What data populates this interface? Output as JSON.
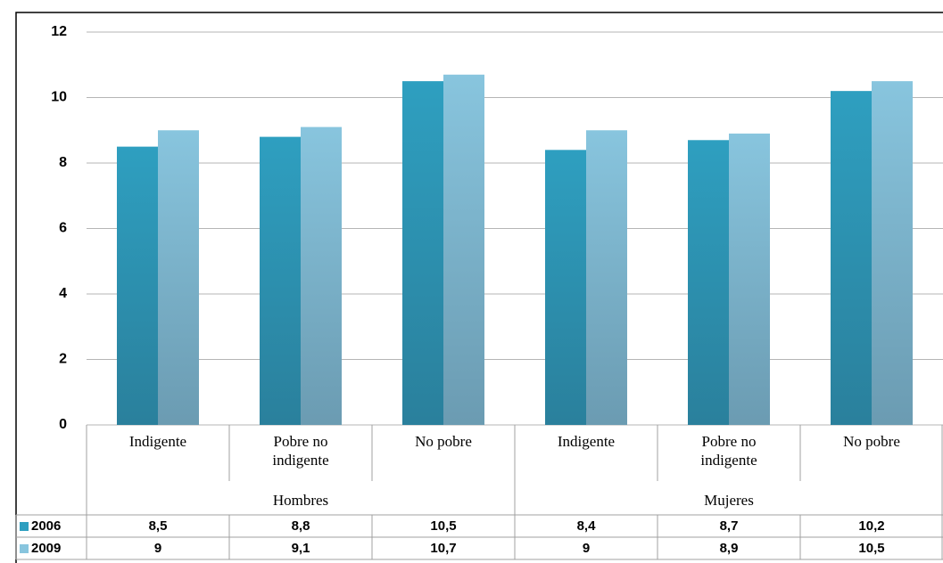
{
  "chart_data": {
    "type": "bar",
    "groups": [
      {
        "label": "Hombres",
        "categories": [
          "Indigente",
          "Pobre no indigente",
          "No pobre"
        ]
      },
      {
        "label": "Mujeres",
        "categories": [
          "Indigente",
          "Pobre no indigente",
          "No pobre"
        ]
      }
    ],
    "series": [
      {
        "name": "2006",
        "color": "#2e9fc0",
        "values": [
          8.5,
          8.8,
          10.5,
          8.4,
          8.7,
          10.2
        ],
        "value_labels": [
          "8,5",
          "8,8",
          "10,5",
          "8,4",
          "8,7",
          "10,2"
        ]
      },
      {
        "name": "2009",
        "color": "#88c5de",
        "values": [
          9,
          9.1,
          10.7,
          9,
          8.9,
          10.5
        ],
        "value_labels": [
          "9",
          "9,1",
          "10,7",
          "9",
          "8,9",
          "10,5"
        ]
      }
    ],
    "ylim": [
      0,
      12
    ],
    "yticks": [
      0,
      2,
      4,
      6,
      8,
      10,
      12
    ],
    "grid": true,
    "legend": "table"
  }
}
